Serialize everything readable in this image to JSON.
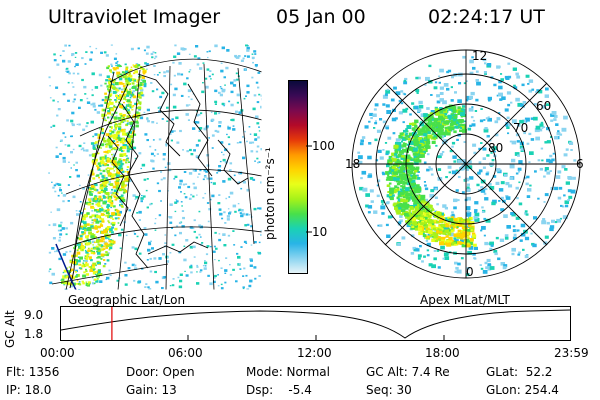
{
  "header": {
    "instrument": "Ultraviolet Imager",
    "date": "05 Jan 00",
    "time": "02:24:17 UT"
  },
  "colorbar": {
    "unit_label": "photon cm⁻²s⁻¹",
    "ticks": [
      "100",
      "10"
    ],
    "colors": [
      "#0a0a3c",
      "#3a0a55",
      "#7a0a4e",
      "#b40a28",
      "#e63a0a",
      "#ff9a00",
      "#ffd400",
      "#e8ff1a",
      "#a6f21a",
      "#48e04a",
      "#1ad2b4",
      "#28b4e6",
      "#8ad4f0",
      "#e6f4f8"
    ]
  },
  "left_map": {
    "caption": "Geographic Lat/Lon"
  },
  "polar_plot": {
    "caption": "Apex MLat/MLT",
    "mlt_labels": [
      "12",
      "18",
      "6",
      "0"
    ],
    "mlat_labels": [
      "60",
      "70",
      "80"
    ]
  },
  "altitude_timeline": {
    "axis_label": "GC Alt",
    "y_ticks": [
      "9.0",
      "1.8"
    ],
    "x_ticks": [
      "00:00",
      "06:00",
      "12:00",
      "18:00",
      "23:59"
    ],
    "current_time_fraction": 0.1
  },
  "info": {
    "row1": {
      "flt": "Flt: 1356",
      "door": "Door: Open",
      "mode": "Mode: Normal",
      "gc_alt": "GC Alt: 7.4 Re",
      "glat": "GLat:  52.2"
    },
    "row2": {
      "ip": "IP: 18.0",
      "gain": "Gain: 13",
      "dsp": "Dsp:    -5.4",
      "seq": "Seq: 30",
      "glon": "GLon: 254.4"
    }
  }
}
